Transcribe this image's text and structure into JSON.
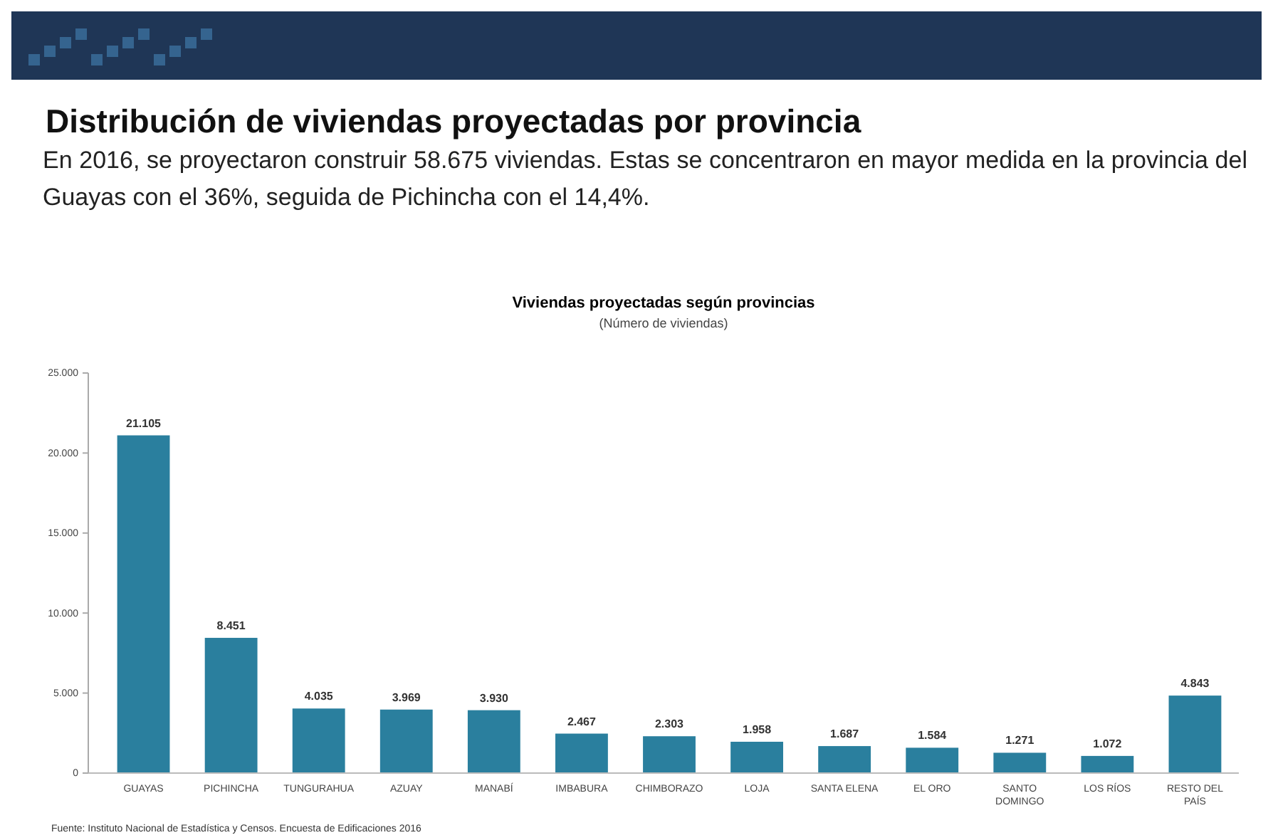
{
  "chart_data": {
    "type": "bar",
    "title": "Distribución de viviendas proyectadas por provincia",
    "subtitle": "En 2016, se proyectaron construir 58.675 viviendas. Estas se concentraron en mayor medida en la provincia del Guayas con el 36%, seguida de Pichincha con el 14,4%.",
    "annotations": [
      "Viviendas proyectadas según provincias",
      "(Número de viviendas)",
      "Fuente: Instituto Nacional de Estadística y Censos. Encuesta de Edificaciones 2016"
    ],
    "categories": [
      "GUAYAS",
      "PICHINCHA",
      "TUNGURAHUA",
      "AZUAY",
      "MANABÍ",
      "IMBABURA",
      "CHIMBORAZO",
      "LOJA",
      "SANTA ELENA",
      "EL ORO",
      "SANTO DOMINGO",
      "LOS RÍOS",
      "RESTO DEL PAÍS"
    ],
    "values": [
      21105,
      8451,
      4035,
      3969,
      3930,
      2467,
      2303,
      1958,
      1687,
      1584,
      1271,
      1072,
      4843
    ],
    "value_labels": [
      "21.105",
      "8.451",
      "4.035",
      "3.969",
      "3.930",
      "2.467",
      "2.303",
      "1.958",
      "1.687",
      "1.584",
      "1.271",
      "1.072",
      "4.843"
    ],
    "color": "#2a7f9e",
    "ylim": [
      0,
      25000
    ],
    "yticks": [
      {
        "value": 0,
        "label": "0"
      },
      {
        "value": 5000,
        "label": "5.000"
      },
      {
        "value": 10000,
        "label": "10.000"
      },
      {
        "value": 15000,
        "label": "15.000"
      },
      {
        "value": 20000,
        "label": "20.000"
      },
      {
        "value": 25000,
        "label": "25.000"
      }
    ],
    "grid": false
  }
}
